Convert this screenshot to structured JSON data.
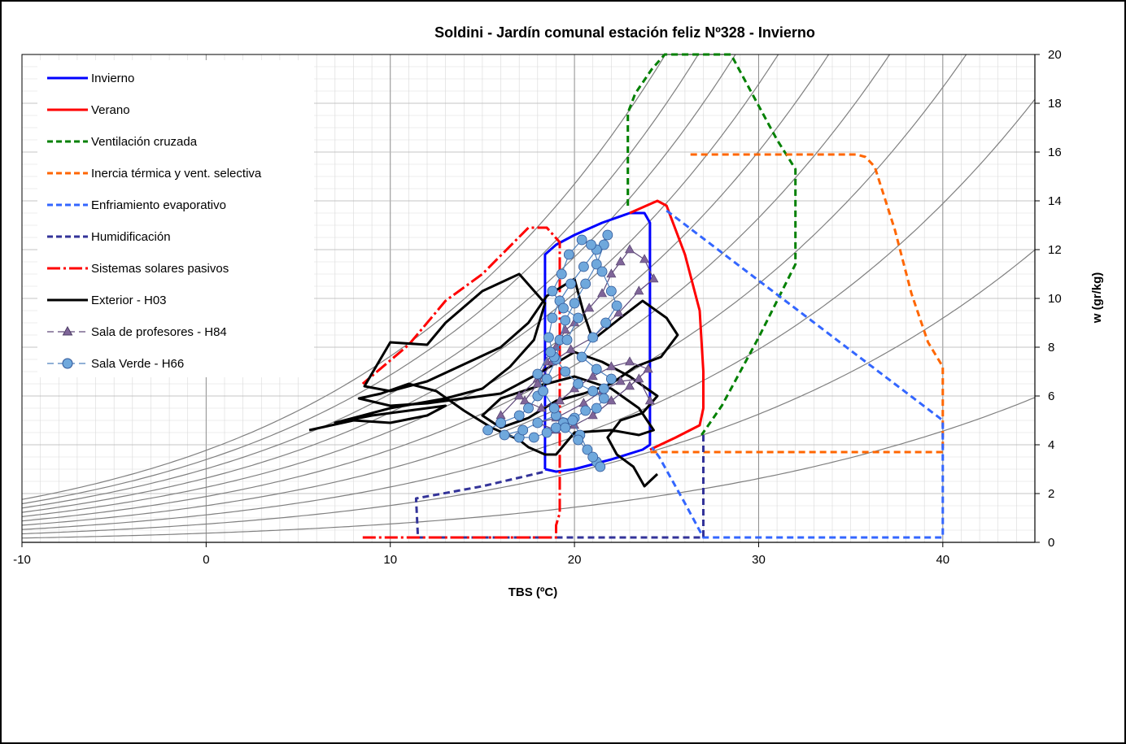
{
  "chart_data": {
    "type": "line",
    "title": "Soldini - Jardín comunal estación feliz Nº328 - Invierno",
    "xlabel": "TBS (ºC)",
    "ylabel": "w (gr/kg)",
    "xlim": [
      -10,
      45
    ],
    "ylim": [
      0,
      20
    ],
    "x_ticks": [
      "-10",
      "0",
      "10",
      "20",
      "30",
      "40"
    ],
    "y_ticks": [
      "0",
      "2",
      "4",
      "6",
      "8",
      "10",
      "12",
      "14",
      "16",
      "18",
      "20"
    ],
    "grid": true,
    "legend_position": "top-left",
    "legend": [
      {
        "label": "Invierno",
        "color": "#0000ff",
        "style": "solid"
      },
      {
        "label": "Verano",
        "color": "#ff0000",
        "style": "solid"
      },
      {
        "label": "Ventilación cruzada",
        "color": "#008000",
        "style": "dashed"
      },
      {
        "label": "Inercia térmica y vent. selectiva",
        "color": "#ff6600",
        "style": "dashed"
      },
      {
        "label": "Enfriamiento evaporativo",
        "color": "#3366ff",
        "style": "dashed"
      },
      {
        "label": "Humidificación",
        "color": "#333399",
        "style": "dashed"
      },
      {
        "label": "Sistemas solares pasivos",
        "color": "#ff0000",
        "style": "dashdot"
      },
      {
        "label": "Exterior - H03",
        "color": "#000000",
        "style": "solid"
      },
      {
        "label": "Sala de profesores - H84",
        "color": "#5f497a",
        "style": "triangle-marker"
      },
      {
        "label": "Sala Verde - H66",
        "color": "#4f81bd",
        "style": "circle-marker"
      }
    ],
    "rh_curves_percent": [
      10,
      20,
      30,
      40,
      50,
      60,
      70,
      80,
      90,
      100
    ],
    "series": [
      {
        "name": "Invierno",
        "color": "#0000ff",
        "dash": "",
        "points": [
          [
            18.4,
            3.0
          ],
          [
            18.4,
            11.8
          ],
          [
            19,
            12.2
          ],
          [
            20,
            12.6
          ],
          [
            21.5,
            13.1
          ],
          [
            23,
            13.5
          ],
          [
            23.8,
            13.5
          ],
          [
            24.1,
            13.1
          ],
          [
            24.1,
            4.0
          ],
          [
            23.7,
            3.8
          ],
          [
            22,
            3.4
          ],
          [
            20,
            3.0
          ],
          [
            19,
            2.9
          ],
          [
            18.4,
            3.0
          ]
        ]
      },
      {
        "name": "Verano",
        "color": "#ff0000",
        "dash": "",
        "points": [
          [
            23,
            13.5
          ],
          [
            24.5,
            14.0
          ],
          [
            25,
            13.8
          ],
          [
            26,
            11.8
          ],
          [
            26.8,
            9.5
          ],
          [
            27,
            7.0
          ],
          [
            27,
            5.5
          ],
          [
            26.8,
            4.8
          ],
          [
            25.5,
            4.3
          ],
          [
            24.1,
            3.8
          ]
        ]
      },
      {
        "name": "Ventilación cruzada",
        "color": "#008000",
        "dash": "8,5",
        "points": [
          [
            22.9,
            13.8
          ],
          [
            22.9,
            17.6
          ],
          [
            23.3,
            18.4
          ],
          [
            24.2,
            19.4
          ],
          [
            24.9,
            20.0
          ],
          [
            28.5,
            20.0
          ],
          [
            29.5,
            18.6
          ],
          [
            31,
            16.5
          ],
          [
            32,
            15.3
          ],
          [
            32,
            11.4
          ],
          [
            30,
            8.4
          ],
          [
            28,
            5.6
          ],
          [
            26.9,
            4.4
          ]
        ]
      },
      {
        "name": "Inercia térmica y vent. selectiva",
        "color": "#ff6600",
        "dash": "8,5",
        "points": [
          [
            26.3,
            15.9
          ],
          [
            35.3,
            15.9
          ],
          [
            35.8,
            15.8
          ],
          [
            36.3,
            15.4
          ],
          [
            37.4,
            12.8
          ],
          [
            38.3,
            10.2
          ],
          [
            39.2,
            8.2
          ],
          [
            40,
            7.2
          ],
          [
            40,
            3.7
          ],
          [
            24,
            3.7
          ]
        ]
      },
      {
        "name": "Enfriamiento evaporativo",
        "color": "#3366ff",
        "dash": "8,5",
        "points": [
          [
            25,
            13.6
          ],
          [
            40,
            5.0
          ],
          [
            40,
            0.2
          ],
          [
            27,
            0.2
          ],
          [
            26,
            1.6
          ],
          [
            24.6,
            3.5
          ],
          [
            24.2,
            3.9
          ]
        ]
      },
      {
        "name": "Humidificación",
        "color": "#333399",
        "dash": "8,5",
        "points": [
          [
            27,
            4.4
          ],
          [
            27,
            0.2
          ],
          [
            11.5,
            0.2
          ],
          [
            11.4,
            1.8
          ],
          [
            15,
            2.3
          ],
          [
            18.4,
            2.9
          ]
        ]
      },
      {
        "name": "Sistemas solares pasivos",
        "color": "#ff0000",
        "dash": "16,4,3,4",
        "points": [
          [
            8.5,
            0.2
          ],
          [
            19,
            0.2
          ],
          [
            19,
            0.7
          ],
          [
            19.2,
            1.2
          ],
          [
            19.2,
            12.3
          ],
          [
            18.5,
            12.9
          ],
          [
            17.5,
            12.9
          ],
          [
            15,
            11.0
          ],
          [
            13,
            9.9
          ],
          [
            11,
            8.1
          ],
          [
            8.5,
            6.5
          ]
        ]
      },
      {
        "name": "Exterior - H03",
        "color": "#000000",
        "dash": "",
        "points": [
          [
            5.6,
            4.6
          ],
          [
            8,
            5.0
          ],
          [
            10,
            4.9
          ],
          [
            12,
            5.2
          ],
          [
            13,
            5.6
          ],
          [
            11,
            5.4
          ],
          [
            9,
            5.2
          ],
          [
            7,
            4.9
          ],
          [
            10,
            5.5
          ],
          [
            13,
            5.9
          ],
          [
            15,
            6.3
          ],
          [
            16.5,
            7.2
          ],
          [
            17.8,
            8.3
          ],
          [
            18.4,
            9.8
          ],
          [
            17,
            11.0
          ],
          [
            15,
            10.3
          ],
          [
            13,
            9.0
          ],
          [
            12,
            8.1
          ],
          [
            10,
            8.2
          ],
          [
            8.6,
            6.4
          ],
          [
            10,
            6.2
          ],
          [
            12,
            6.6
          ],
          [
            14,
            7.3
          ],
          [
            16,
            8.0
          ],
          [
            17.5,
            9.0
          ],
          [
            18.5,
            10.1
          ],
          [
            20,
            10.8
          ],
          [
            20.5,
            9.4
          ],
          [
            21,
            8.3
          ],
          [
            22.5,
            9.2
          ],
          [
            23.7,
            9.9
          ],
          [
            25,
            9.2
          ],
          [
            25.6,
            8.5
          ],
          [
            24.7,
            7.6
          ],
          [
            23.3,
            7.2
          ],
          [
            22,
            6.5
          ],
          [
            20.5,
            6.1
          ],
          [
            19,
            5.8
          ],
          [
            17.5,
            5.1
          ],
          [
            16,
            4.7
          ],
          [
            15,
            5.2
          ],
          [
            16,
            5.9
          ],
          [
            18,
            6.4
          ],
          [
            20,
            6.8
          ],
          [
            22,
            6.3
          ],
          [
            23.5,
            5.5
          ],
          [
            24.3,
            4.6
          ],
          [
            23.5,
            4.4
          ],
          [
            22,
            4.6
          ],
          [
            20,
            4.5
          ],
          [
            19,
            3.6
          ],
          [
            18.4,
            3.6
          ],
          [
            17.5,
            3.9
          ],
          [
            17,
            4.2
          ],
          [
            15.5,
            4.7
          ],
          [
            14,
            5.4
          ],
          [
            12.5,
            6.2
          ],
          [
            11,
            6.5
          ],
          [
            9.5,
            6.1
          ],
          [
            8.3,
            5.9
          ],
          [
            10,
            5.6
          ],
          [
            12,
            5.7
          ],
          [
            14,
            5.9
          ],
          [
            16,
            6.1
          ],
          [
            18,
            6.9
          ],
          [
            20,
            7.8
          ],
          [
            21.5,
            7.4
          ],
          [
            23,
            6.8
          ],
          [
            24.5,
            6.0
          ],
          [
            23.7,
            5.3
          ],
          [
            22.5,
            5.0
          ],
          [
            21.8,
            4.3
          ],
          [
            22.3,
            3.6
          ],
          [
            23.2,
            3.1
          ],
          [
            23.8,
            2.3
          ],
          [
            24.5,
            2.8
          ]
        ]
      },
      {
        "name": "Sala de profesores - H84",
        "color": "#5f497a",
        "dash": "",
        "marker": "triangle",
        "points": [
          [
            16,
            5.2
          ],
          [
            17,
            6.0
          ],
          [
            18,
            6.7
          ],
          [
            18.5,
            7.4
          ],
          [
            19,
            8.0
          ],
          [
            19.5,
            8.7
          ],
          [
            20,
            9.0
          ],
          [
            20.8,
            9.6
          ],
          [
            21.5,
            10.2
          ],
          [
            22,
            11.0
          ],
          [
            22.5,
            11.5
          ],
          [
            23,
            12.0
          ],
          [
            23.8,
            11.6
          ],
          [
            24.3,
            10.8
          ],
          [
            23.5,
            10.3
          ],
          [
            22.4,
            9.4
          ],
          [
            21,
            8.4
          ],
          [
            19.8,
            7.9
          ],
          [
            18.8,
            7.4
          ],
          [
            18,
            6.5
          ],
          [
            17.3,
            5.8
          ],
          [
            18.2,
            5.5
          ],
          [
            19.2,
            5.8
          ],
          [
            20,
            6.3
          ],
          [
            21,
            6.8
          ],
          [
            22,
            7.2
          ],
          [
            23,
            7.4
          ],
          [
            24,
            7.1
          ],
          [
            23,
            6.4
          ],
          [
            22,
            5.8
          ],
          [
            21,
            5.2
          ],
          [
            20,
            4.8
          ],
          [
            19,
            4.6
          ],
          [
            18,
            4.9
          ],
          [
            19,
            5.1
          ],
          [
            20.5,
            5.7
          ],
          [
            21.5,
            6.2
          ],
          [
            22.5,
            6.6
          ],
          [
            23.5,
            6.7
          ],
          [
            24.1,
            5.8
          ]
        ]
      },
      {
        "name": "Sala Verde - H66",
        "color": "#4f81bd",
        "dash": "",
        "marker": "circle",
        "points": [
          [
            15.3,
            4.6
          ],
          [
            16,
            4.9
          ],
          [
            17,
            5.2
          ],
          [
            17.5,
            5.5
          ],
          [
            18,
            6.0
          ],
          [
            18.5,
            6.7
          ],
          [
            19,
            7.5
          ],
          [
            19.2,
            8.3
          ],
          [
            19.5,
            9.1
          ],
          [
            20,
            9.8
          ],
          [
            20.6,
            10.6
          ],
          [
            21.2,
            11.4
          ],
          [
            21.6,
            12.2
          ],
          [
            21.8,
            12.6
          ],
          [
            21.2,
            12.0
          ],
          [
            20.5,
            11.3
          ],
          [
            19.8,
            10.6
          ],
          [
            19.2,
            9.9
          ],
          [
            18.8,
            9.2
          ],
          [
            18.6,
            8.4
          ],
          [
            18.9,
            7.6
          ],
          [
            19.5,
            7.0
          ],
          [
            20.2,
            6.5
          ],
          [
            21,
            6.2
          ],
          [
            21.6,
            5.9
          ],
          [
            21.2,
            5.5
          ],
          [
            20.6,
            5.4
          ],
          [
            20,
            5.1
          ],
          [
            19.4,
            4.9
          ],
          [
            19,
            4.7
          ],
          [
            18.5,
            4.5
          ],
          [
            17.8,
            4.3
          ],
          [
            17,
            4.3
          ],
          [
            16.2,
            4.4
          ],
          [
            17.2,
            4.6
          ],
          [
            18,
            4.9
          ],
          [
            19,
            5.2
          ],
          [
            19.9,
            5.0
          ],
          [
            20.3,
            4.4
          ],
          [
            20.7,
            3.8
          ],
          [
            21.2,
            3.3
          ],
          [
            21.4,
            3.1
          ],
          [
            21,
            3.5
          ],
          [
            20.2,
            4.2
          ],
          [
            19.5,
            4.7
          ],
          [
            18.9,
            5.5
          ],
          [
            18.3,
            6.2
          ],
          [
            18,
            6.9
          ],
          [
            18.7,
            7.8
          ],
          [
            19.6,
            8.3
          ],
          [
            20.2,
            9.2
          ],
          [
            19.4,
            9.6
          ],
          [
            18.8,
            10.3
          ],
          [
            19.3,
            11.0
          ],
          [
            19.7,
            11.8
          ],
          [
            20.4,
            12.4
          ],
          [
            20.9,
            12.2
          ],
          [
            21.5,
            11.1
          ],
          [
            22,
            10.3
          ],
          [
            22.3,
            9.7
          ],
          [
            21.7,
            9.0
          ],
          [
            21,
            8.4
          ],
          [
            20.4,
            7.6
          ],
          [
            21.2,
            7.1
          ],
          [
            22,
            6.7
          ],
          [
            21.6,
            6.3
          ]
        ]
      }
    ]
  }
}
